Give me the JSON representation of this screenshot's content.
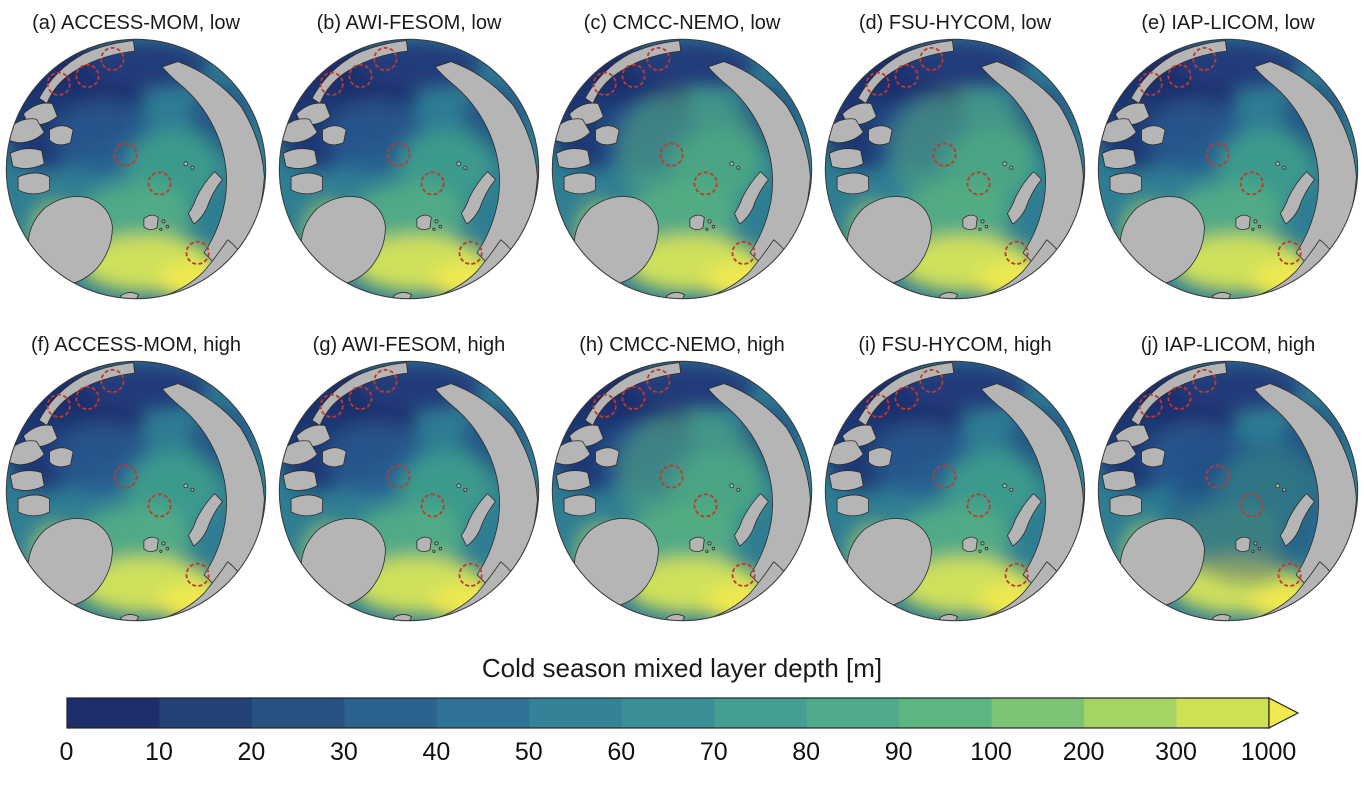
{
  "panels": [
    {
      "id": "a",
      "label": "(a) ACCESS-MOM, low",
      "tint": ""
    },
    {
      "id": "b",
      "label": "(b) AWI-FESOM, low",
      "tint": ""
    },
    {
      "id": "c",
      "label": "(c) CMCC-NEMO, low",
      "tint": "green"
    },
    {
      "id": "d",
      "label": "(d) FSU-HYCOM, low",
      "tint": "green"
    },
    {
      "id": "e",
      "label": "(e) IAP-LICOM, low",
      "tint": ""
    },
    {
      "id": "f",
      "label": "(f) ACCESS-MOM, high",
      "tint": ""
    },
    {
      "id": "g",
      "label": "(g) AWI-FESOM, high",
      "tint": ""
    },
    {
      "id": "h",
      "label": "(h) CMCC-NEMO, high",
      "tint": "green"
    },
    {
      "id": "i",
      "label": "(i) FSU-HYCOM, high",
      "tint": ""
    },
    {
      "id": "j",
      "label": "(j) IAP-LICOM, high",
      "tint": "dark"
    }
  ],
  "colorbar": {
    "title": "Cold season mixed layer depth [m]",
    "ticks": [
      "0",
      "10",
      "20",
      "30",
      "40",
      "50",
      "60",
      "70",
      "80",
      "90",
      "100",
      "200",
      "300",
      "1000"
    ],
    "segment_colors": [
      "#1e2e6a",
      "#234276",
      "#275383",
      "#2b638e",
      "#307295",
      "#358198",
      "#3b9097",
      "#449e92",
      "#4fab8a",
      "#5db681",
      "#7cc474",
      "#a5d364",
      "#cfe055"
    ],
    "arrow_color": "#f1ea4e",
    "outline_color": "#222222"
  },
  "map": {
    "land_color": "#b5b5b5",
    "land_outline_color": "#2a2a2a",
    "ocean_base_color": "#2f7d93",
    "marker_color": "#c0392b",
    "markers": [
      [
        41,
        35
      ],
      [
        63,
        29
      ],
      [
        82,
        16
      ],
      [
        92,
        89
      ],
      [
        118,
        111
      ],
      [
        147,
        164
      ]
    ],
    "tints": {
      "green": "#58b07e",
      "dark": "#1f3f7c"
    }
  },
  "chart_data": {
    "type": "heatmap",
    "title": "Cold season mixed layer depth [m]",
    "description": "Ten polar stereographic maps of Arctic cold-season mixed layer depth from five ocean models, each at low and high resolution; gray areas are land, red dashed circles mark six site locations; deep (yellow) mixed layers appear in the Greenland/Norwegian seas, shallow (dark blue) in the Canada Basin.",
    "panels": [
      {
        "id": "a",
        "model": "ACCESS-MOM",
        "resolution": "low"
      },
      {
        "id": "b",
        "model": "AWI-FESOM",
        "resolution": "low"
      },
      {
        "id": "c",
        "model": "CMCC-NEMO",
        "resolution": "low"
      },
      {
        "id": "d",
        "model": "FSU-HYCOM",
        "resolution": "low"
      },
      {
        "id": "e",
        "model": "IAP-LICOM",
        "resolution": "low"
      },
      {
        "id": "f",
        "model": "ACCESS-MOM",
        "resolution": "high"
      },
      {
        "id": "g",
        "model": "AWI-FESOM",
        "resolution": "high"
      },
      {
        "id": "h",
        "model": "CMCC-NEMO",
        "resolution": "high"
      },
      {
        "id": "i",
        "model": "FSU-HYCOM",
        "resolution": "high"
      },
      {
        "id": "j",
        "model": "IAP-LICOM",
        "resolution": "high"
      }
    ],
    "colorbar": {
      "label": "Cold season mixed layer depth [m]",
      "units": "m",
      "ticks": [
        0,
        10,
        20,
        30,
        40,
        50,
        60,
        70,
        80,
        90,
        100,
        200,
        300,
        1000
      ],
      "extend": "max",
      "scale": "linear 0-100, stretched 100-1000"
    }
  }
}
